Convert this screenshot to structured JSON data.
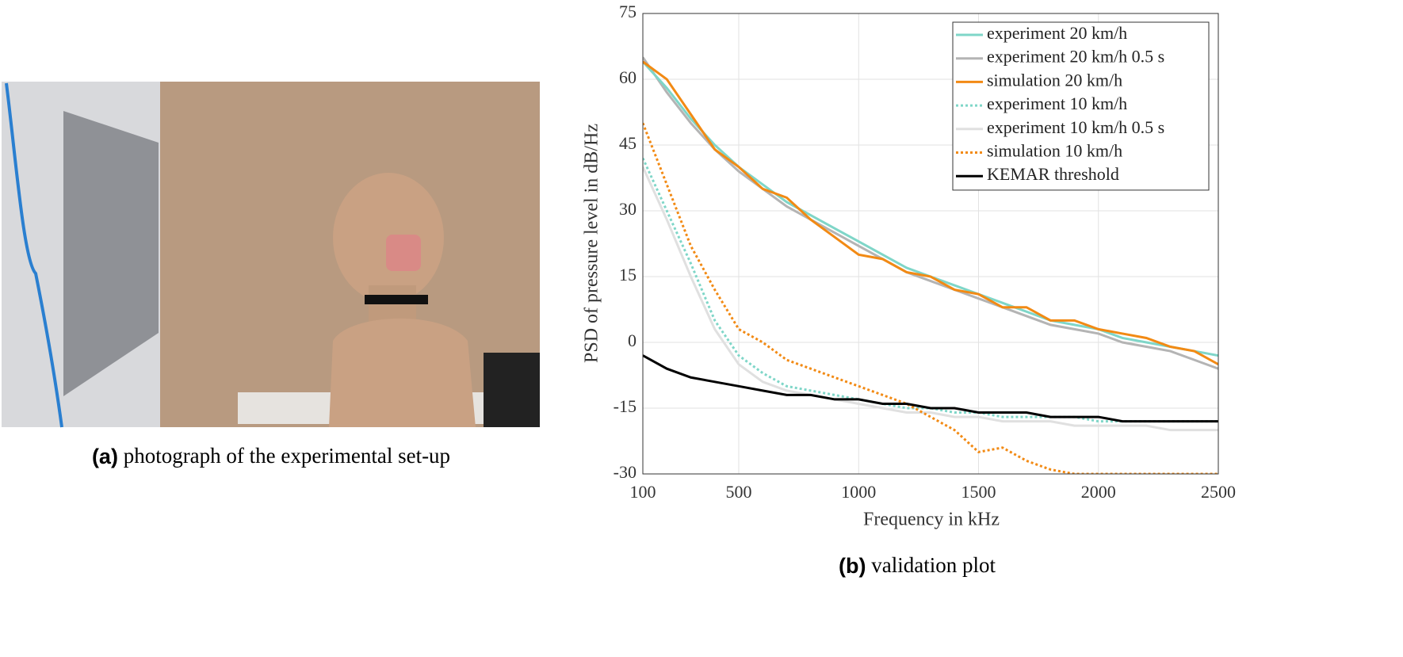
{
  "figure": {
    "caption_a_label": "(a)",
    "caption_a_text": "photograph of the experimental set-up",
    "caption_b_label": "(b)",
    "caption_b_text": "validation plot"
  },
  "chart_data": {
    "type": "line",
    "x_label": "Frequency in kHz",
    "y_label": "PSD of pressure level in dB/Hz",
    "x": [
      100,
      200,
      300,
      400,
      500,
      600,
      700,
      800,
      900,
      1000,
      1100,
      1200,
      1300,
      1400,
      1500,
      1600,
      1700,
      1800,
      1900,
      2000,
      2100,
      2200,
      2300,
      2400,
      2500
    ],
    "series": [
      {
        "name": "experiment 20 km/h",
        "color": "#7fd6c8",
        "style": "solid",
        "values": [
          64,
          58,
          51,
          45,
          40,
          36,
          32,
          29,
          26,
          23,
          20,
          17,
          15,
          13,
          11,
          9,
          7,
          5,
          4,
          3,
          1,
          0,
          -1,
          -2,
          -3
        ]
      },
      {
        "name": "experiment 20 km/h 0.5 s",
        "color": "#b4b4b4",
        "style": "solid",
        "values": [
          65,
          57,
          50,
          44,
          39,
          35,
          31,
          28,
          25,
          22,
          19,
          16,
          14,
          12,
          10,
          8,
          6,
          4,
          3,
          2,
          0,
          -1,
          -2,
          -4,
          -6
        ]
      },
      {
        "name": "simulation 20 km/h",
        "color": "#f28a14",
        "style": "solid",
        "values": [
          64,
          60,
          52,
          44,
          40,
          35,
          33,
          28,
          24,
          20,
          19,
          16,
          15,
          12,
          11,
          8,
          8,
          5,
          5,
          3,
          2,
          1,
          -1,
          -2,
          -5
        ]
      },
      {
        "name": "experiment 10 km/h",
        "color": "#7fd6c8",
        "style": "dotted",
        "values": [
          42,
          30,
          18,
          5,
          -3,
          -7,
          -10,
          -11,
          -12,
          -13,
          -14,
          -15,
          -15,
          -16,
          -16,
          -17,
          -17,
          -17,
          -17,
          -18,
          -18,
          -18,
          -18,
          -18,
          -18
        ]
      },
      {
        "name": "experiment 10 km/h 0.5 s",
        "color": "#e0e0e0",
        "style": "solid",
        "values": [
          40,
          28,
          15,
          3,
          -5,
          -9,
          -11,
          -12,
          -13,
          -14,
          -15,
          -16,
          -16,
          -17,
          -17,
          -18,
          -18,
          -18,
          -19,
          -19,
          -19,
          -19,
          -20,
          -20,
          -20
        ]
      },
      {
        "name": "simulation 10 km/h",
        "color": "#f28a14",
        "style": "dotted",
        "values": [
          50,
          36,
          22,
          12,
          3,
          0,
          -4,
          -6,
          -8,
          -10,
          -12,
          -14,
          -17,
          -20,
          -25,
          -24,
          -27,
          -29,
          -30,
          -30,
          -30,
          -30,
          -30,
          -30,
          -30
        ]
      },
      {
        "name": "KEMAR threshold",
        "color": "#000000",
        "style": "solid",
        "values": [
          -3,
          -6,
          -8,
          -9,
          -10,
          -11,
          -12,
          -12,
          -13,
          -13,
          -14,
          -14,
          -15,
          -15,
          -16,
          -16,
          -16,
          -17,
          -17,
          -17,
          -18,
          -18,
          -18,
          -18,
          -18
        ]
      }
    ],
    "xlim": [
      100,
      2500
    ],
    "xticks": [
      100,
      500,
      1000,
      1500,
      2000,
      2500
    ],
    "ylim": [
      -30,
      75
    ],
    "yticks": [
      -30,
      -15,
      0,
      15,
      30,
      45,
      60,
      75
    ],
    "grid": true,
    "legend": "upper right"
  }
}
